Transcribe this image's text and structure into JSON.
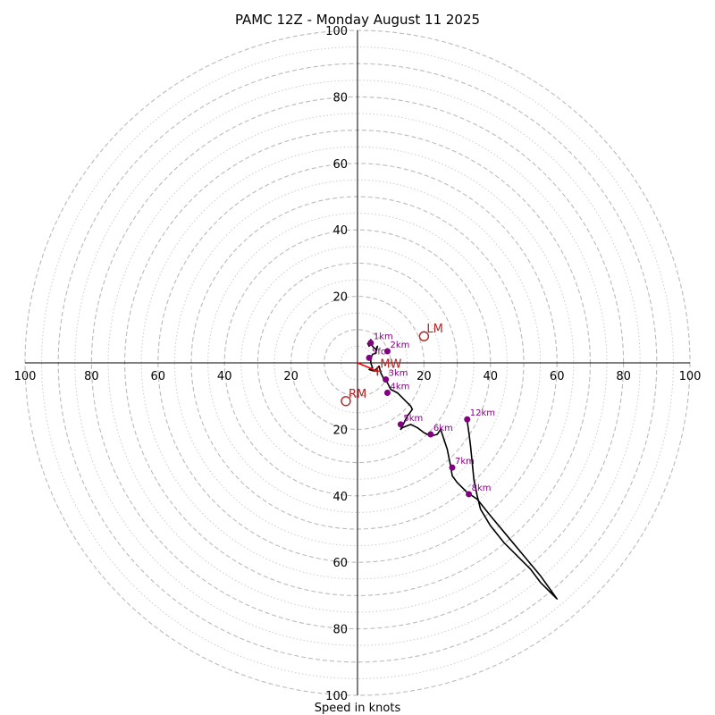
{
  "chart_data": {
    "type": "scatter",
    "subtype": "hodograph",
    "title": "PAMC 12Z - Monday August 11 2025",
    "xlabel": "Speed in knots",
    "ylabel": "",
    "xlim": [
      -100,
      100
    ],
    "ylim": [
      -100,
      100
    ],
    "range_rings_major": [
      10,
      20,
      30,
      40,
      50,
      60,
      70,
      80,
      90,
      100
    ],
    "range_rings_minor": [
      5,
      15,
      25,
      35,
      45,
      55,
      65,
      75,
      85,
      95
    ],
    "x_tick_labels": [
      "100",
      "80",
      "60",
      "40",
      "20",
      "20",
      "40",
      "60",
      "80",
      "100"
    ],
    "y_tick_labels": [
      "100",
      "80",
      "60",
      "40",
      "20",
      "20",
      "40",
      "60",
      "80",
      "100"
    ],
    "trace_color": "#000000",
    "height_marker_color": "#800080",
    "storm_motion_color": "#b22222",
    "wind_trace": [
      [
        3,
        6
      ],
      [
        3.5,
        5
      ],
      [
        4,
        7
      ],
      [
        4.5,
        5
      ],
      [
        5.5,
        4
      ],
      [
        6,
        5
      ],
      [
        5.5,
        3
      ],
      [
        4.5,
        2.5
      ],
      [
        4,
        1.5
      ],
      [
        4,
        0
      ],
      [
        4.5,
        -1.5
      ],
      [
        3.5,
        -2
      ],
      [
        5,
        -2.5
      ],
      [
        6.5,
        -1
      ],
      [
        7,
        -3
      ],
      [
        8,
        -5
      ],
      [
        9,
        -6
      ],
      [
        10,
        -8
      ],
      [
        12,
        -9
      ],
      [
        14,
        -11
      ],
      [
        16,
        -13
      ],
      [
        16.5,
        -14
      ],
      [
        15,
        -16
      ],
      [
        14,
        -18
      ],
      [
        13,
        -20
      ],
      [
        13.5,
        -19.5
      ],
      [
        16,
        -18.5
      ],
      [
        18,
        -19.5
      ],
      [
        20,
        -21
      ],
      [
        22,
        -22
      ],
      [
        24,
        -21.5
      ],
      [
        25,
        -20
      ],
      [
        26,
        -23
      ],
      [
        27,
        -26
      ],
      [
        28,
        -31
      ],
      [
        28.5,
        -34
      ],
      [
        30,
        -36
      ],
      [
        33,
        -39
      ],
      [
        36,
        -41
      ],
      [
        40,
        -46
      ],
      [
        45,
        -52
      ],
      [
        50,
        -58
      ],
      [
        55,
        -64
      ],
      [
        60,
        -71
      ],
      [
        58,
        -69
      ],
      [
        55,
        -66
      ],
      [
        52,
        -62
      ],
      [
        48,
        -58
      ],
      [
        44,
        -54
      ],
      [
        40,
        -49
      ],
      [
        37,
        -44
      ],
      [
        36,
        -40
      ],
      [
        35,
        -35
      ],
      [
        34.5,
        -30
      ],
      [
        34,
        -25
      ],
      [
        33.5,
        -21
      ],
      [
        33,
        -17.5
      ]
    ],
    "height_points": [
      {
        "label": "Sfc",
        "u": 3.5,
        "v": 1.5
      },
      {
        "label": "1km",
        "u": 4,
        "v": 6
      },
      {
        "label": "2km",
        "u": 9,
        "v": 3.5
      },
      {
        "label": "3km",
        "u": 8.5,
        "v": -5
      },
      {
        "label": "4km",
        "u": 9,
        "v": -9
      },
      {
        "label": "5km",
        "u": 13,
        "v": -18.5
      },
      {
        "label": "6km",
        "u": 22,
        "v": -21.5
      },
      {
        "label": "7km",
        "u": 28.5,
        "v": -31.5
      },
      {
        "label": "8km",
        "u": 33.5,
        "v": -39.5
      },
      {
        "label": "12km",
        "u": 33,
        "v": -17
      }
    ],
    "storm_motion": [
      {
        "label": "LM",
        "u": 20,
        "v": 8,
        "marker": "open-circle"
      },
      {
        "label": "RM",
        "u": -3.5,
        "v": -11.5,
        "marker": "open-circle"
      },
      {
        "label": "MW",
        "u": 6,
        "v": -2.5,
        "marker": "cross"
      }
    ],
    "shear_vector": {
      "from": [
        0,
        0
      ],
      "to": [
        6,
        -2.5
      ],
      "color": "#ff0000"
    }
  }
}
